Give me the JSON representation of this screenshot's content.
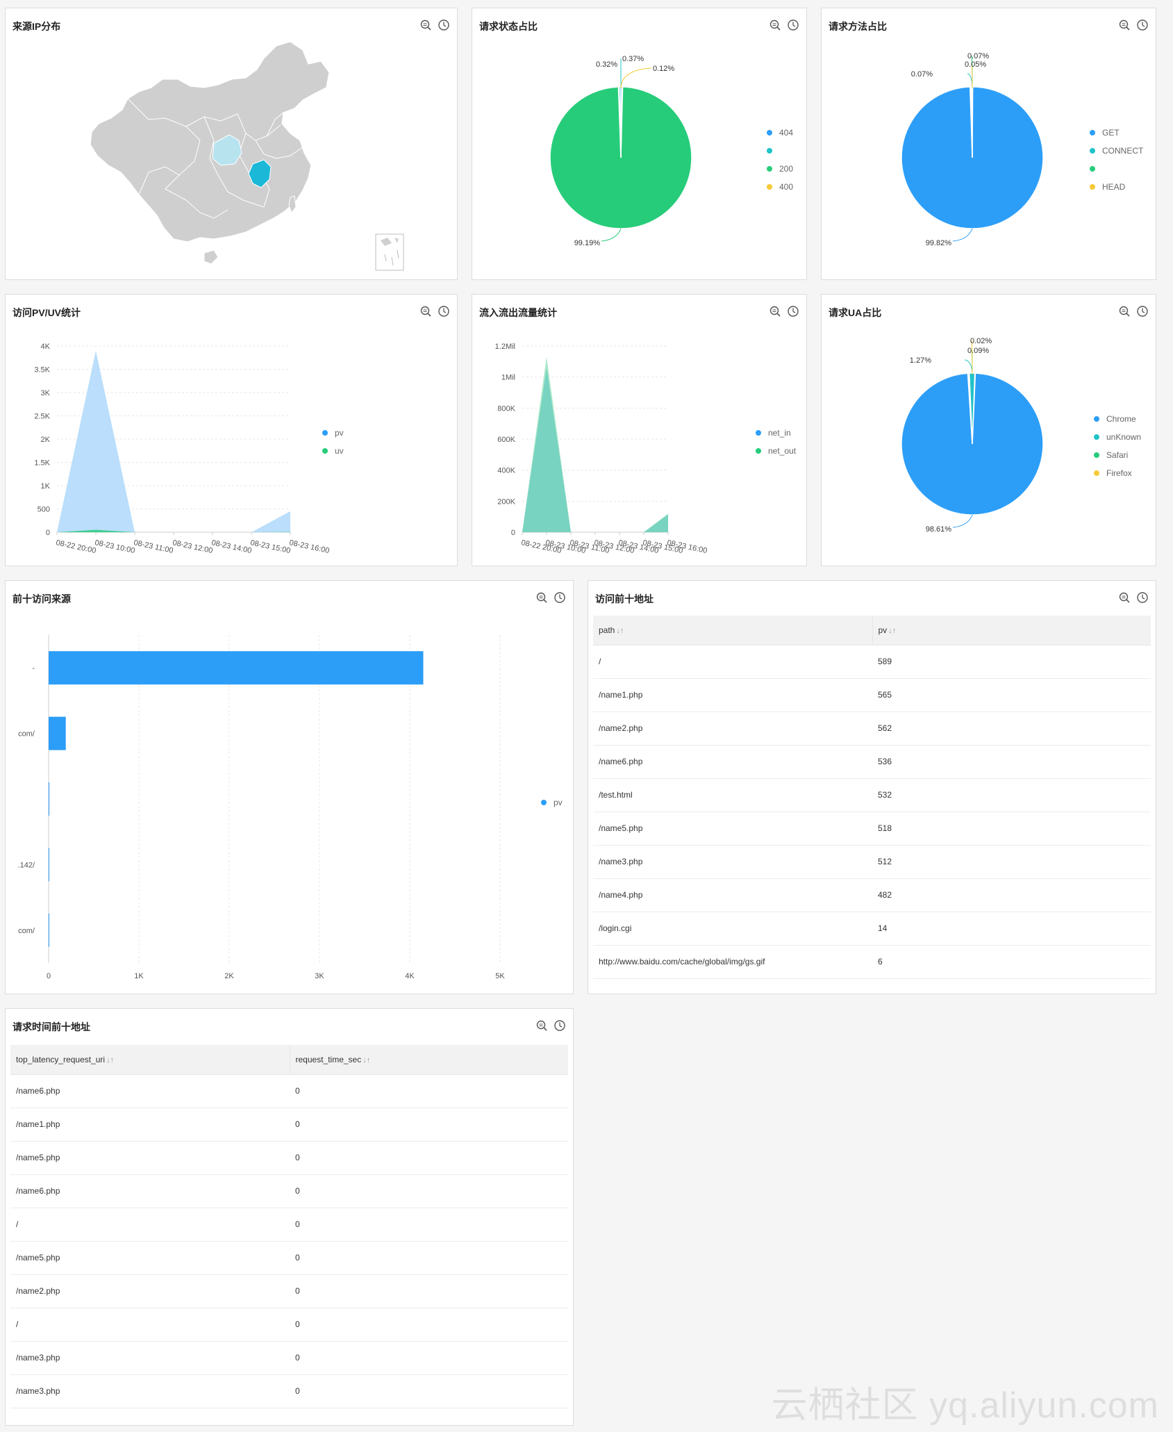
{
  "panels": {
    "geo": {
      "title": "来源IP分布"
    },
    "status": {
      "title": "请求状态占比"
    },
    "method": {
      "title": "请求方法占比"
    },
    "pvuv": {
      "title": "访问PV/UV统计"
    },
    "traffic": {
      "title": "流入流出流量统计"
    },
    "ua": {
      "title": "请求UA占比"
    },
    "topsrc": {
      "title": "前十访问来源"
    },
    "toppath": {
      "title": "访问前十地址"
    },
    "latency": {
      "title": "请求时间前十地址"
    }
  },
  "icons": {
    "zoom": "zoom-search-icon",
    "clock": "clock-icon"
  },
  "colors": {
    "blue": "#2c9ef8",
    "green": "#27cc7a",
    "teal": "#20c3c7",
    "yellow": "#f7c935",
    "lightblue": "#b6dcfb",
    "map_gray": "#cfcfcf",
    "map_hl": "#1bb8d8",
    "map_hl_light": "#b7e3ef"
  },
  "chart_data": [
    {
      "id": "status",
      "type": "pie",
      "title": "请求状态占比",
      "legend": [
        "404",
        "",
        "200",
        "400"
      ],
      "legend_position": "right",
      "slices": [
        {
          "name": "200",
          "value": 99.19,
          "label": "99.19%",
          "color": "#27cc7a"
        },
        {
          "name": "404",
          "value": 0.32,
          "label": "0.32%",
          "color": "#2c9ef8"
        },
        {
          "name": "",
          "value": 0.37,
          "label": "0.37%",
          "color": "#20c3c7"
        },
        {
          "name": "400",
          "value": 0.12,
          "label": "0.12%",
          "color": "#f7c935"
        }
      ]
    },
    {
      "id": "method",
      "type": "pie",
      "title": "请求方法占比",
      "legend": [
        "GET",
        "CONNECT",
        "",
        "HEAD"
      ],
      "legend_position": "right",
      "slices": [
        {
          "name": "GET",
          "value": 99.82,
          "label": "99.82%",
          "color": "#2c9ef8"
        },
        {
          "name": "CONNECT",
          "value": 0.07,
          "label": "0.07%",
          "color": "#20c3c7"
        },
        {
          "name": "",
          "value": 0.07,
          "label": "0.07%",
          "color": "#27cc7a"
        },
        {
          "name": "HEAD",
          "value": 0.05,
          "label": "0.05%",
          "color": "#f7c935"
        }
      ]
    },
    {
      "id": "ua",
      "type": "pie",
      "title": "请求UA占比",
      "legend": [
        "Chrome",
        "unKnown",
        "Safari",
        "Firefox"
      ],
      "legend_position": "right",
      "slices": [
        {
          "name": "Chrome",
          "value": 98.61,
          "label": "98.61%",
          "color": "#2c9ef8"
        },
        {
          "name": "unKnown",
          "value": 1.27,
          "label": "1.27%",
          "color": "#20c3c7"
        },
        {
          "name": "Safari",
          "value": 0.09,
          "label": "0.09%",
          "color": "#27cc7a"
        },
        {
          "name": "Firefox",
          "value": 0.02,
          "label": "0.02%",
          "color": "#f7c935"
        }
      ]
    },
    {
      "id": "pvuv",
      "type": "area",
      "title": "访问PV/UV统计",
      "categories": [
        "08-22 20:00",
        "08-23 10:00",
        "08-23 11:00",
        "08-23 12:00",
        "08-23 14:00",
        "08-23 15:00",
        "08-23 16:00"
      ],
      "y_ticks": [
        "0",
        "500",
        "1K",
        "1.5K",
        "2K",
        "2.5K",
        "3K",
        "3.5K",
        "4K"
      ],
      "ylim": [
        0,
        4000
      ],
      "series": [
        {
          "name": "pv",
          "values": [
            0,
            3900,
            0,
            0,
            0,
            0,
            450
          ],
          "color": "#b6dcfb"
        },
        {
          "name": "uv",
          "values": [
            0,
            50,
            0,
            0,
            0,
            0,
            5
          ],
          "color": "#27cc7a"
        }
      ],
      "legend": [
        "pv",
        "uv"
      ],
      "legend_colors": [
        "#2c9ef8",
        "#27cc7a"
      ],
      "legend_position": "right",
      "grid": true
    },
    {
      "id": "traffic",
      "type": "area",
      "title": "流入流出流量统计",
      "categories": [
        "08-22 20:00",
        "08-23 10:00",
        "08-23 11:00",
        "08-23 12:00",
        "08-23 14:00",
        "08-23 15:00",
        "08-23 16:00"
      ],
      "y_ticks": [
        "0",
        "200K",
        "400K",
        "600K",
        "800K",
        "1Mil",
        "1.2Mil"
      ],
      "ylim": [
        0,
        1200000
      ],
      "series": [
        {
          "name": "net_in",
          "values": [
            0,
            1130000,
            0,
            0,
            0,
            0,
            120000
          ],
          "color": "#a8e8c7"
        },
        {
          "name": "net_out",
          "values": [
            0,
            1060000,
            0,
            0,
            0,
            0,
            115000
          ],
          "color": "#6fcfc0"
        }
      ],
      "legend": [
        "net_in",
        "net_out"
      ],
      "legend_colors": [
        "#2c9ef8",
        "#27cc7a"
      ],
      "legend_position": "right",
      "grid": true
    },
    {
      "id": "topsrc",
      "type": "bar",
      "title": "前十访问来源",
      "orientation": "horizontal",
      "categories": [
        "-",
        "com/",
        "",
        ".142/",
        "com/"
      ],
      "series": [
        {
          "name": "pv",
          "values": [
            4150,
            190,
            8,
            4,
            3
          ],
          "color": "#2c9ef8"
        }
      ],
      "x_ticks": [
        "0",
        "1K",
        "2K",
        "3K",
        "4K",
        "5K"
      ],
      "xlim": [
        0,
        5000
      ],
      "legend": [
        "pv"
      ],
      "legend_position": "right",
      "grid": true
    }
  ],
  "toppath_table": {
    "columns": [
      "path",
      "pv"
    ],
    "rows": [
      [
        "/",
        "589"
      ],
      [
        "/name1.php",
        "565"
      ],
      [
        "/name2.php",
        "562"
      ],
      [
        "/name6.php",
        "536"
      ],
      [
        "/test.html",
        "532"
      ],
      [
        "/name5.php",
        "518"
      ],
      [
        "/name3.php",
        "512"
      ],
      [
        "/name4.php",
        "482"
      ],
      [
        "/login.cgi",
        "14"
      ],
      [
        "http://www.baidu.com/cache/global/img/gs.gif",
        "6"
      ]
    ]
  },
  "latency_table": {
    "columns": [
      "top_latency_request_uri",
      "request_time_sec"
    ],
    "rows": [
      [
        "/name6.php",
        "0"
      ],
      [
        "/name1.php",
        "0"
      ],
      [
        "/name5.php",
        "0"
      ],
      [
        "/name6.php",
        "0"
      ],
      [
        "/",
        "0"
      ],
      [
        "/name5.php",
        "0"
      ],
      [
        "/name2.php",
        "0"
      ],
      [
        "/",
        "0"
      ],
      [
        "/name3.php",
        "0"
      ],
      [
        "/name3.php",
        "0"
      ]
    ]
  },
  "watermark": "云栖社区 yq.aliyun.com"
}
